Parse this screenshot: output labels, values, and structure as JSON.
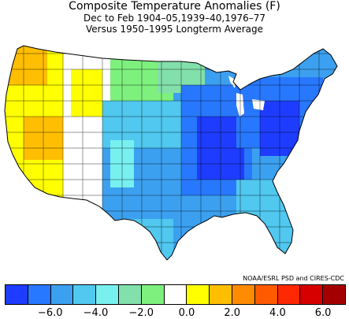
{
  "title": "Composite Temperature Anomalies (F)",
  "subtitle1": "Dec to Feb  1904–05,1939–40,1976–77",
  "subtitle2": "Versus 1950–1995 Longterm Average",
  "credit": "NOAA/ESRL PSD and CIRES-CDC",
  "colorbar": {
    "colors": [
      "#1e3cff",
      "#2878ff",
      "#3ca0f0",
      "#50c8f0",
      "#78f0f0",
      "#82e0aa",
      "#7ef07e",
      "#ffffff",
      "#ffff00",
      "#ffbe00",
      "#ff8c00",
      "#ff5a00",
      "#ff2800",
      "#d70000",
      "#a50000"
    ],
    "ticks": [
      {
        "label": "−6.0",
        "index": 1
      },
      {
        "label": "−4.0",
        "index": 3
      },
      {
        "label": "−2.0",
        "index": 5
      },
      {
        "label": "0.0",
        "index": 7
      },
      {
        "label": "2.0",
        "index": 9
      },
      {
        "label": "4.0",
        "index": 11
      },
      {
        "label": "6.0",
        "index": 13
      }
    ]
  },
  "map_data": {
    "region": "Contiguous United States",
    "variable": "Temperature anomaly (F)",
    "pattern": "Strong negative anomalies centered over Ohio/Tennessee valley and Midwest; near-zero to slightly negative in Great Plains; positive anomalies over the West (California, Nevada, Idaho, Oregon)"
  }
}
